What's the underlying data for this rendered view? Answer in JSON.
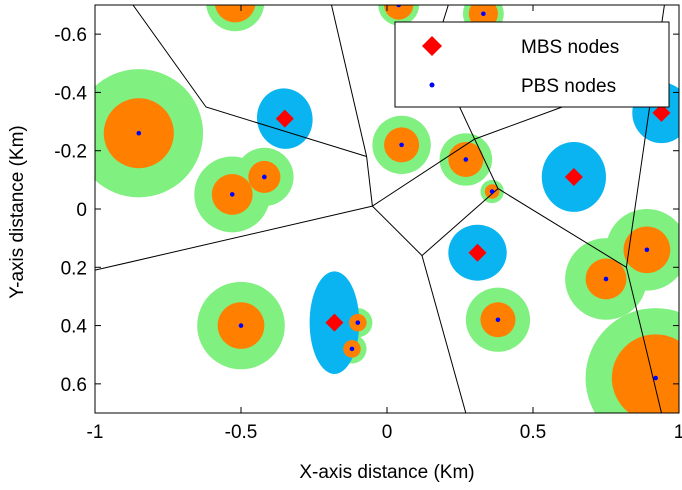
{
  "chart_data": {
    "type": "scatter",
    "title": "",
    "xlabel": "X-axis distance (Km)",
    "ylabel": "Y-axis distance (Km)",
    "xlim": [
      -1,
      1
    ],
    "ylim": [
      -0.7,
      0.7
    ],
    "y_axis_reversed": true,
    "grid": false,
    "legend_position": "top-right",
    "xticks": [
      -1,
      -0.5,
      0,
      0.5,
      1
    ],
    "xtick_labels": [
      "-1",
      "-0.5",
      "0",
      "0.5",
      "1"
    ],
    "yticks": [
      -0.6,
      -0.4,
      -0.2,
      0,
      0.2,
      0.4,
      0.6
    ],
    "ytick_labels": [
      "-0.6",
      "-0.4",
      "-0.2",
      "0",
      "0.2",
      "0.4",
      "0.6"
    ],
    "colors": {
      "mbs_marker": "#ff0000",
      "pbs_marker": "#0000ff",
      "mbs_region": "#0ab4f0",
      "pbs_inner": "#ff8000",
      "pbs_outer": "#80f080",
      "cell_edge": "#000000"
    },
    "series": [
      {
        "name": "MBS nodes",
        "marker": "diamond",
        "x": [
          -0.35,
          0.64,
          0.31,
          -0.18,
          0.94
        ],
        "y": [
          -0.31,
          -0.11,
          0.15,
          0.39,
          -0.33
        ]
      },
      {
        "name": "PBS nodes",
        "marker": "dot",
        "x": [
          -0.85,
          -0.53,
          -0.42,
          -0.5,
          0.05,
          0.27,
          0.36,
          0.38,
          -0.1,
          -0.12,
          0.75,
          0.89,
          0.92,
          0.04,
          0.33,
          -0.52
        ],
        "y": [
          -0.26,
          -0.05,
          -0.11,
          0.4,
          -0.22,
          -0.17,
          -0.06,
          0.38,
          0.39,
          0.48,
          0.24,
          0.14,
          0.58,
          -0.7,
          -0.67,
          -0.71
        ]
      }
    ],
    "pbs_inner_radius": [
      0.12,
      0.07,
      0.055,
      0.08,
      0.06,
      0.06,
      0.025,
      0.06,
      0.03,
      0.03,
      0.07,
      0.08,
      0.15,
      0.05,
      0.05,
      0.07
    ],
    "pbs_outer_radius": [
      0.22,
      0.13,
      0.1,
      0.15,
      0.1,
      0.09,
      0.04,
      0.11,
      0.05,
      0.05,
      0.14,
      0.14,
      0.24,
      0.07,
      0.07,
      0.1
    ],
    "voronoi_edges": [
      [
        [
          -0.19,
          -0.7
        ],
        [
          -0.07,
          -0.18
        ],
        [
          -0.05,
          -0.01
        ],
        [
          0.12,
          0.16
        ],
        [
          0.27,
          0.7
        ]
      ],
      [
        [
          -0.05,
          -0.01
        ],
        [
          -1,
          0.21
        ]
      ],
      [
        [
          -0.07,
          -0.18
        ],
        [
          -0.62,
          -0.35
        ],
        [
          -0.87,
          -0.7
        ]
      ],
      [
        [
          0.21,
          -0.7
        ],
        [
          0.16,
          -0.54
        ],
        [
          0.3,
          -0.24
        ],
        [
          0.38,
          -0.07
        ],
        [
          0.12,
          0.16
        ]
      ],
      [
        [
          0.05,
          -0.53
        ],
        [
          0.16,
          -0.54
        ]
      ],
      [
        [
          0.3,
          -0.24
        ],
        [
          0.6,
          -0.35
        ]
      ],
      [
        [
          -0.05,
          -0.01
        ],
        [
          0.3,
          -0.24
        ]
      ],
      [
        [
          0.38,
          -0.07
        ],
        [
          0.82,
          0.2
        ],
        [
          0.94,
          0.7
        ]
      ],
      [
        [
          0.82,
          0.2
        ],
        [
          0.95,
          -0.7
        ]
      ]
    ]
  }
}
